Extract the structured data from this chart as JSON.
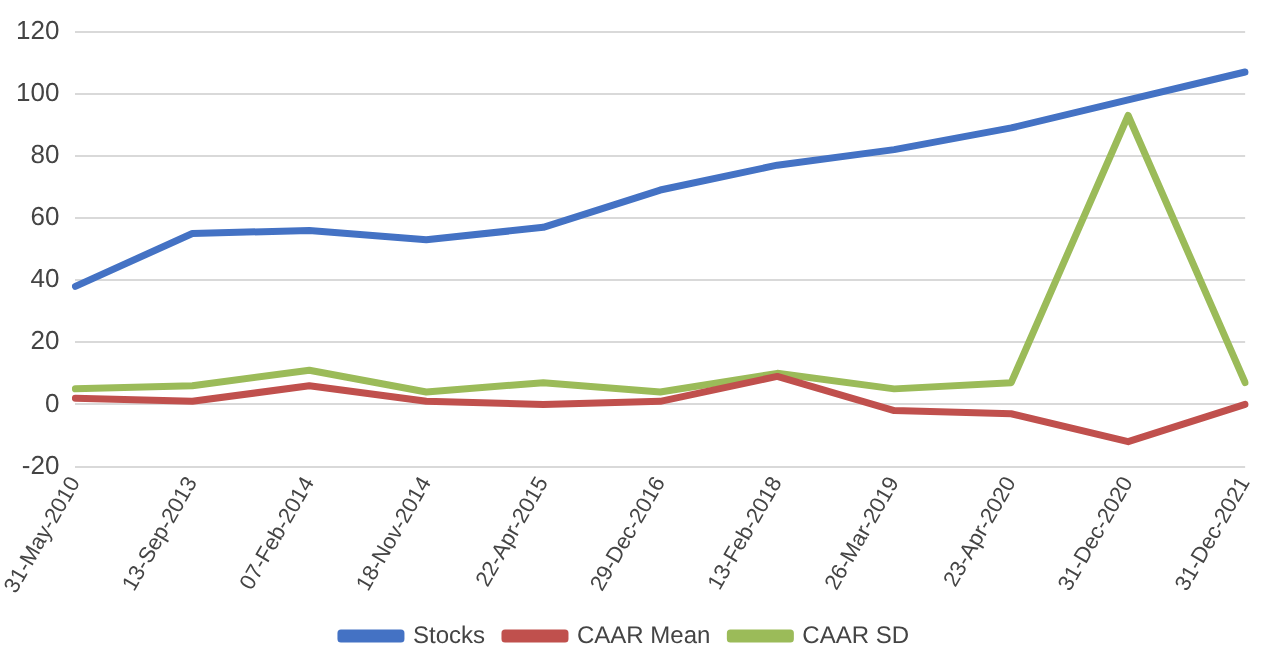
{
  "chart_data": {
    "type": "line",
    "categories": [
      "31-May-2010",
      "13-Sep-2013",
      "07-Feb-2014",
      "18-Nov-2014",
      "22-Apr-2015",
      "29-Dec-2016",
      "13-Feb-2018",
      "26-Mar-2019",
      "23-Apr-2020",
      "31-Dec-2020",
      "31-Dec-2021"
    ],
    "series": [
      {
        "name": "Stocks",
        "color": "#4472c4",
        "values": [
          38,
          55,
          56,
          53,
          57,
          69,
          77,
          82,
          89,
          98,
          107
        ]
      },
      {
        "name": "CAAR Mean",
        "color": "#c0504d",
        "values": [
          2,
          1,
          6,
          1,
          0,
          1,
          9,
          -2,
          -3,
          -12,
          0
        ]
      },
      {
        "name": "CAAR SD",
        "color": "#9bbb59",
        "values": [
          5,
          6,
          11,
          4,
          7,
          4,
          10,
          5,
          7,
          93,
          7
        ]
      }
    ],
    "ylim": [
      -20,
      120
    ],
    "yticks": [
      -20,
      0,
      20,
      40,
      60,
      80,
      100,
      120
    ],
    "grid": "y",
    "legend": "bottom",
    "marker": "none",
    "line_style": "solid"
  }
}
